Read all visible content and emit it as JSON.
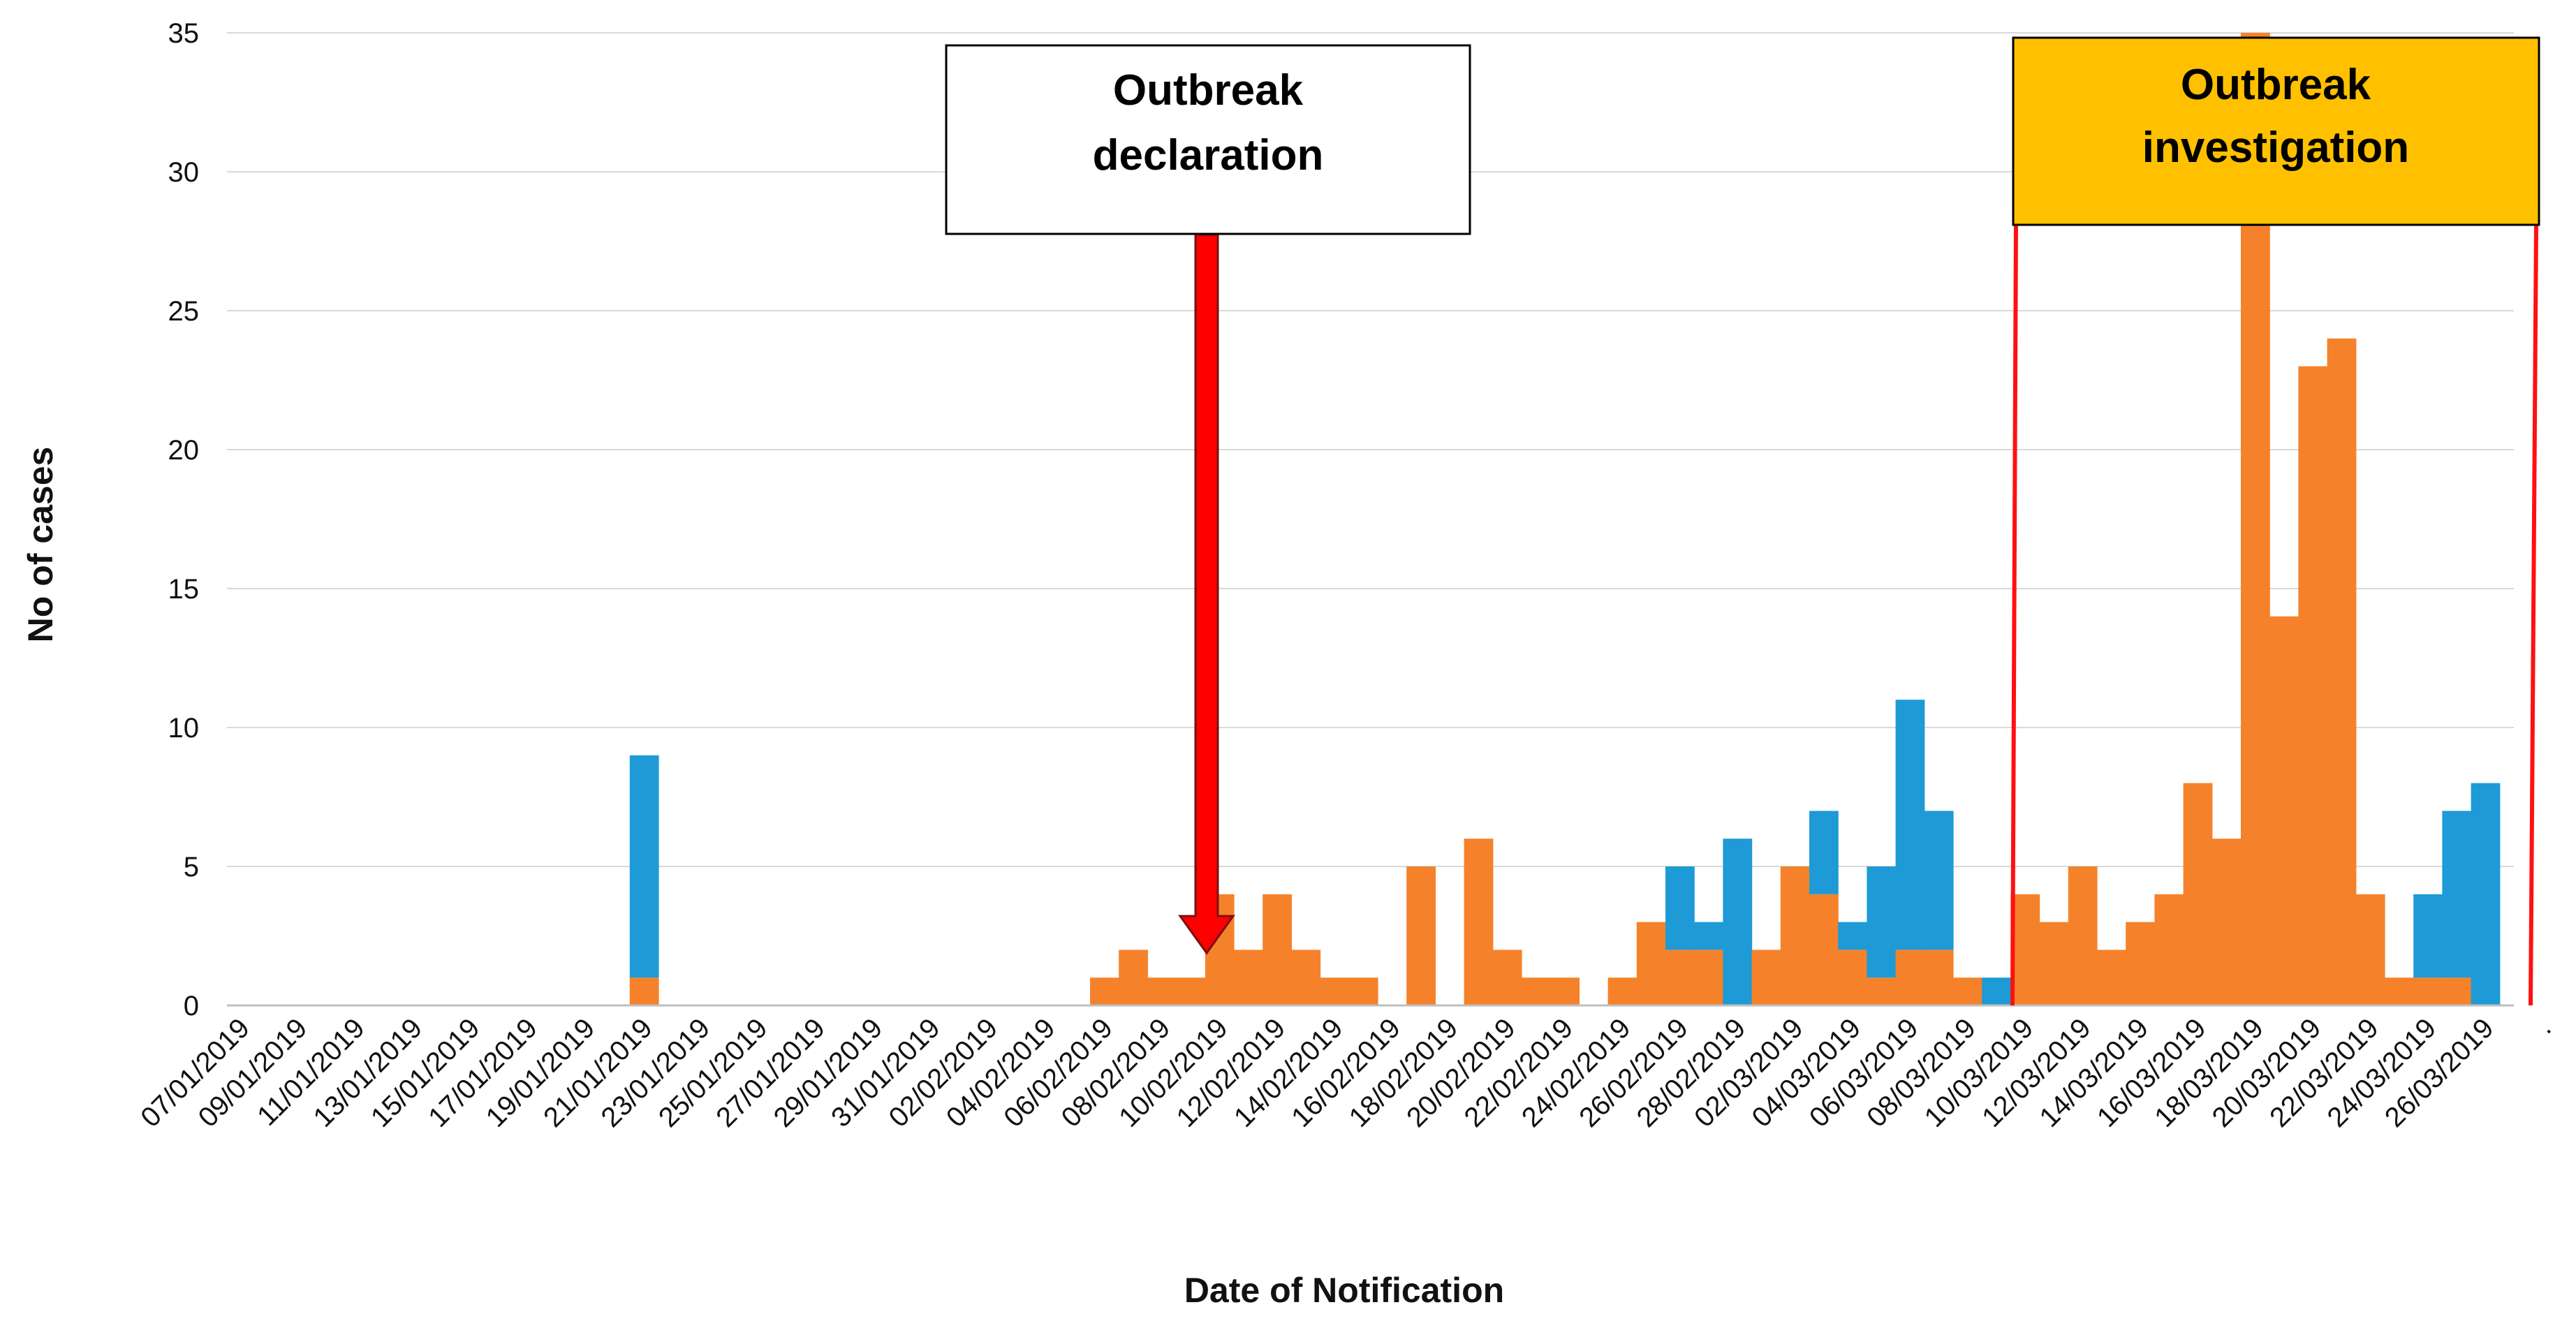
{
  "chart_data": {
    "type": "bar",
    "stacked": true,
    "ylabel": "No of cases",
    "xlabel": "Date of Notification",
    "ylim": [
      0,
      35
    ],
    "yticks": [
      0,
      5,
      10,
      15,
      20,
      25,
      30,
      35
    ],
    "grid": "horizontal",
    "categories": [
      "07/01/2019",
      "08/01/2019",
      "09/01/2019",
      "10/01/2019",
      "11/01/2019",
      "12/01/2019",
      "13/01/2019",
      "14/01/2019",
      "15/01/2019",
      "16/01/2019",
      "17/01/2019",
      "18/01/2019",
      "19/01/2019",
      "20/01/2019",
      "21/01/2019",
      "22/01/2019",
      "23/01/2019",
      "24/01/2019",
      "25/01/2019",
      "26/01/2019",
      "27/01/2019",
      "28/01/2019",
      "29/01/2019",
      "30/01/2019",
      "31/01/2019",
      "01/02/2019",
      "02/02/2019",
      "03/02/2019",
      "04/02/2019",
      "05/02/2019",
      "06/02/2019",
      "07/02/2019",
      "08/02/2019",
      "09/02/2019",
      "10/02/2019",
      "11/02/2019",
      "12/02/2019",
      "13/02/2019",
      "14/02/2019",
      "15/02/2019",
      "16/02/2019",
      "17/02/2019",
      "18/02/2019",
      "19/02/2019",
      "20/02/2019",
      "21/02/2019",
      "22/02/2019",
      "23/02/2019",
      "24/02/2019",
      "25/02/2019",
      "26/02/2019",
      "27/02/2019",
      "28/02/2019",
      "01/03/2019",
      "02/03/2019",
      "03/03/2019",
      "04/03/2019",
      "05/03/2019",
      "06/03/2019",
      "07/03/2019",
      "08/03/2019",
      "09/03/2019",
      "10/03/2019",
      "11/03/2019",
      "12/03/2019",
      "13/03/2019",
      "14/03/2019",
      "15/03/2019",
      "16/03/2019",
      "17/03/2019",
      "18/03/2019",
      "19/03/2019",
      "20/03/2019",
      "21/03/2019",
      "22/03/2019",
      "23/03/2019",
      "24/03/2019",
      "25/03/2019",
      "26/03/2019",
      "27/03/2019"
    ],
    "tick_labels": [
      "07/01/2019",
      "09/01/2019",
      "11/01/2019",
      "13/01/2019",
      "15/01/2019",
      "17/01/2019",
      "19/01/2019",
      "21/01/2019",
      "23/01/2019",
      "25/01/2019",
      "27/01/2019",
      "29/01/2019",
      "31/01/2019",
      "02/02/2019",
      "04/02/2019",
      "06/02/2019",
      "08/02/2019",
      "10/02/2019",
      "12/02/2019",
      "14/02/2019",
      "16/02/2019",
      "18/02/2019",
      "20/02/2019",
      "22/02/2019",
      "24/02/2019",
      "26/02/2019",
      "28/02/2019",
      "02/03/2019",
      "04/03/2019",
      "06/03/2019",
      "08/03/2019",
      "10/03/2019",
      "12/03/2019",
      "14/03/2019",
      "16/03/2019",
      "18/03/2019",
      "20/03/2019",
      "22/03/2019",
      "24/03/2019",
      "26/03/2019",
      "."
    ],
    "series": [
      {
        "name": "orange",
        "color": "#F5822A",
        "values": [
          0,
          0,
          0,
          0,
          0,
          0,
          0,
          0,
          0,
          0,
          0,
          0,
          0,
          0,
          1,
          0,
          0,
          0,
          0,
          0,
          0,
          0,
          0,
          0,
          0,
          0,
          0,
          0,
          0,
          0,
          1,
          2,
          1,
          1,
          4,
          2,
          4,
          2,
          1,
          1,
          0,
          5,
          0,
          6,
          2,
          1,
          1,
          0,
          1,
          3,
          2,
          2,
          0,
          2,
          5,
          4,
          2,
          1,
          2,
          2,
          1,
          0,
          4,
          3,
          5,
          2,
          3,
          4,
          8,
          6,
          35,
          14,
          23,
          24,
          4,
          1,
          1,
          1,
          0,
          0
        ]
      },
      {
        "name": "blue",
        "color": "#1E9AD6",
        "values": [
          0,
          0,
          0,
          0,
          0,
          0,
          0,
          0,
          0,
          0,
          0,
          0,
          0,
          0,
          8,
          0,
          0,
          0,
          0,
          0,
          0,
          0,
          0,
          0,
          0,
          0,
          0,
          0,
          0,
          0,
          0,
          0,
          0,
          0,
          0,
          0,
          0,
          0,
          0,
          0,
          0,
          0,
          0,
          0,
          0,
          0,
          0,
          0,
          0,
          0,
          3,
          1,
          6,
          0,
          0,
          3,
          1,
          4,
          9,
          5,
          0,
          1,
          0,
          0,
          0,
          0,
          0,
          0,
          0,
          0,
          0,
          0,
          0,
          0,
          0,
          0,
          3,
          6,
          8,
          0
        ]
      }
    ],
    "annotations": [
      {
        "text": "Outbreak declaration",
        "line1": "Outbreak",
        "line2": "declaration",
        "style": "white-box-with-red-arrow",
        "points_to": "09/02/2019"
      },
      {
        "text": "Outbreak investigation",
        "line1": "Outbreak",
        "line2": "investigation",
        "style": "yellow-box-with-red-bracket",
        "box_color": "#FFC000",
        "span": [
          "10/03/2019",
          "27/03/2019"
        ]
      }
    ]
  }
}
